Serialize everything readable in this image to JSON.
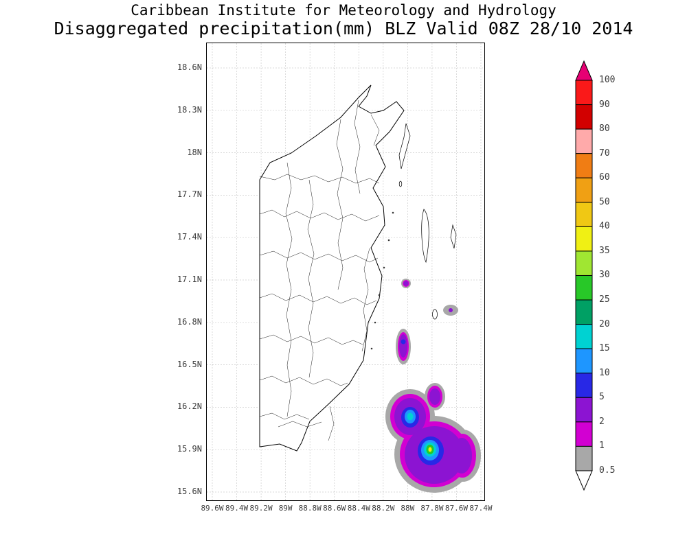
{
  "title": {
    "line1": "Caribbean Institute for Meteorology and Hydrology",
    "line2": "Disaggregated precipitation(mm) BLZ Valid 08Z 28/10 2014"
  },
  "map": {
    "region": "Belize (BLZ)",
    "lat_labels": [
      "18.6N",
      "18.3N",
      "18N",
      "17.7N",
      "17.4N",
      "17.1N",
      "16.8N",
      "16.5N",
      "16.2N",
      "15.9N",
      "15.6N"
    ],
    "lon_labels": [
      "89.6W",
      "89.4W",
      "89.2W",
      "89W",
      "88.8W",
      "88.6W",
      "88.4W",
      "88.2W",
      "88W",
      "87.8W",
      "87.6W",
      "87.4W"
    ]
  },
  "palette": {
    "pink": "#e60073",
    "red": "#fa1919",
    "dark_red": "#d20000",
    "salmon": "#ffaaaa",
    "dark_orange": "#f07d14",
    "orange": "#f0a014",
    "gold": "#f0c814",
    "yellow": "#f0f014",
    "yellow_green": "#a0e632",
    "green": "#28c828",
    "sea_green": "#00a064",
    "cyan": "#00d2d2",
    "light_blue": "#1e96ff",
    "blue": "#2828e6",
    "purple": "#8c14d2",
    "magenta": "#d200d2",
    "gray": "#a8a8a8",
    "white": "#ffffff"
  },
  "colorbar": {
    "labels": [
      "100",
      "90",
      "80",
      "70",
      "60",
      "50",
      "40",
      "35",
      "30",
      "25",
      "20",
      "15",
      "10",
      "5",
      "2",
      "1",
      "0.5"
    ],
    "levels_mm": [
      100,
      90,
      80,
      70,
      60,
      50,
      40,
      35,
      30,
      25,
      20,
      15,
      10,
      5,
      2,
      1,
      0.5
    ],
    "segment_colors_top_to_bottom": [
      "red",
      "dark_red",
      "salmon",
      "dark_orange",
      "orange",
      "gold",
      "yellow",
      "yellow_green",
      "green",
      "sea_green",
      "cyan",
      "light_blue",
      "blue",
      "purple",
      "magenta",
      "gray"
    ],
    "arrow_top": "pink",
    "arrow_bottom": "white"
  },
  "precip_features": [
    {
      "center": "17.1N 88.0W",
      "peak_mm": "2-5"
    },
    {
      "center": "16.65N 88.0W",
      "peak_mm": "5-10"
    },
    {
      "center": "16.9N 87.65W",
      "peak_mm": "0.5-1"
    },
    {
      "center": "16.1N 88.0W",
      "peak_mm": "15-20"
    },
    {
      "center": "16.3N 87.8W",
      "peak_mm": "2-5"
    },
    {
      "center": "15.9N 87.8W",
      "peak_mm": "40-50"
    },
    {
      "center": "15.9N 87.55W",
      "peak_mm": "2-5"
    }
  ]
}
